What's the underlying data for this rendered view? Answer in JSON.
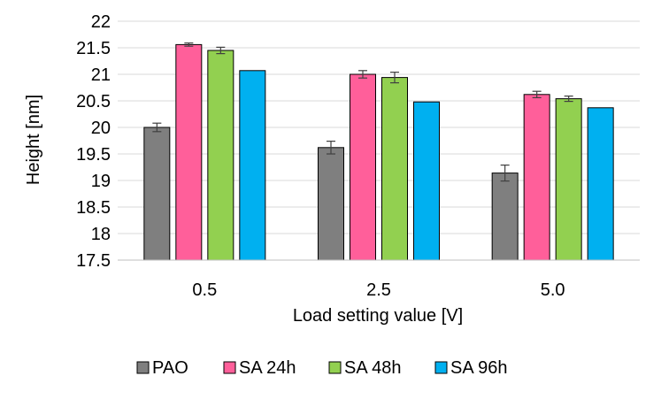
{
  "chart_data": {
    "type": "bar",
    "title": "",
    "xlabel": "Load setting value [V]",
    "ylabel": "Height [nm]",
    "categories": [
      "0.5",
      "2.5",
      "5.0"
    ],
    "ylim": [
      17.5,
      22
    ],
    "yticks": [
      "17.5",
      "18",
      "18.5",
      "19",
      "19.5",
      "20",
      "20.5",
      "21",
      "21.5",
      "22"
    ],
    "grid": true,
    "legend_position": "bottom",
    "series": [
      {
        "name": "PAO",
        "color": "#7f7f7f",
        "values": [
          20.0,
          19.62,
          19.14
        ],
        "error": [
          0.08,
          0.12,
          0.15
        ]
      },
      {
        "name": "SA 24h",
        "color": "#ff5f9a",
        "values": [
          21.56,
          21.0,
          20.62
        ],
        "error": [
          0.03,
          0.07,
          0.06
        ]
      },
      {
        "name": "SA 48h",
        "color": "#92d050",
        "values": [
          21.45,
          20.94,
          20.54
        ],
        "error": [
          0.06,
          0.1,
          0.05
        ]
      },
      {
        "name": "SA 96h",
        "color": "#00b0f0",
        "values": [
          21.07,
          20.48,
          20.37
        ],
        "error": [
          0,
          0,
          0
        ]
      }
    ]
  }
}
